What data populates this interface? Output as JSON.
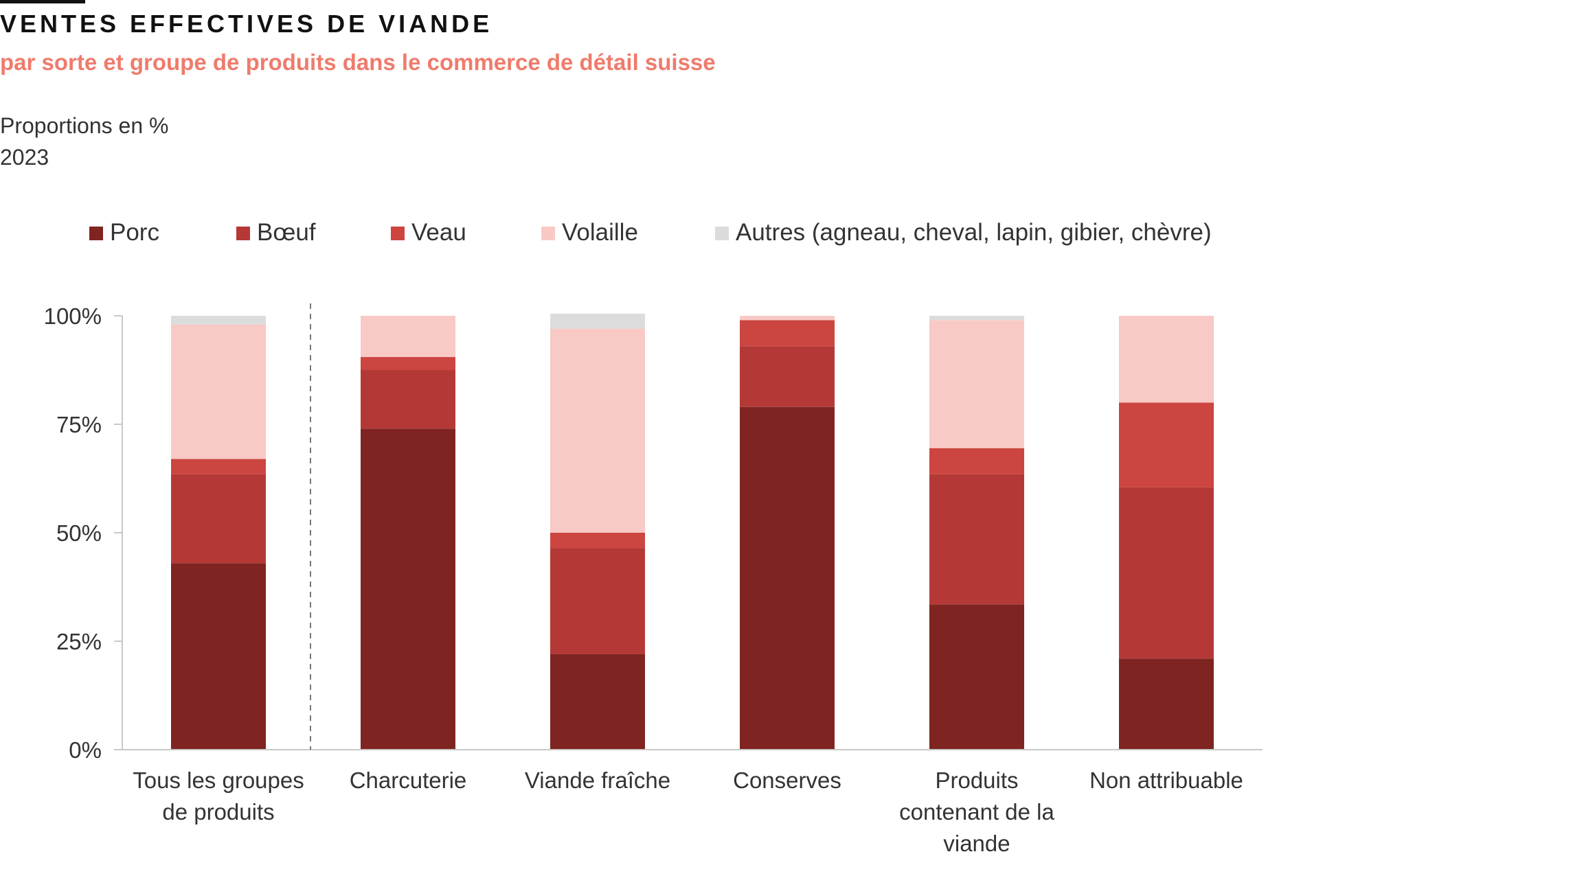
{
  "header": {
    "title": "VENTES EFFECTIVES DE VIANDE",
    "subtitle": "par sorte et groupe de produits dans le commerce de détail suisse",
    "unit_note": "Proportions en %",
    "year": "2023"
  },
  "colors": {
    "Porc": "#7f2421",
    "Bœuf": "#b43936",
    "Veau": "#cc4540",
    "Volaille": "#f9c9c5",
    "Autres": "#dcdcdc"
  },
  "chart_data": {
    "type": "bar",
    "stacked": true,
    "categories": [
      [
        "Tous les groupes",
        "de produits"
      ],
      [
        "Charcuterie"
      ],
      [
        "Viande fraîche"
      ],
      [
        "Conserves"
      ],
      [
        "Produits",
        "contenant de la",
        "viande"
      ],
      [
        "Non attribuable"
      ]
    ],
    "series": [
      {
        "name": "Porc",
        "values": [
          43,
          74,
          22,
          79,
          33.5,
          21
        ]
      },
      {
        "name": "Bœuf",
        "values": [
          20.5,
          13.5,
          24.5,
          14,
          30,
          39.5
        ]
      },
      {
        "name": "Veau",
        "values": [
          3.5,
          3,
          3.5,
          6,
          6,
          19.5
        ]
      },
      {
        "name": "Volaille",
        "values": [
          31,
          9.5,
          47,
          1,
          29.5,
          20
        ]
      },
      {
        "name": "Autres (agneau, cheval, lapin, gibier, chèvre)",
        "values": [
          2,
          0,
          3.5,
          0,
          1,
          0
        ]
      }
    ],
    "ylim": [
      0,
      100
    ],
    "yticks": [
      0,
      25,
      50,
      75,
      100
    ],
    "ytick_labels": [
      "0%",
      "25%",
      "50%",
      "75%",
      "100%"
    ],
    "legend_position": "top",
    "separator_after_category": 0,
    "grid": false
  }
}
